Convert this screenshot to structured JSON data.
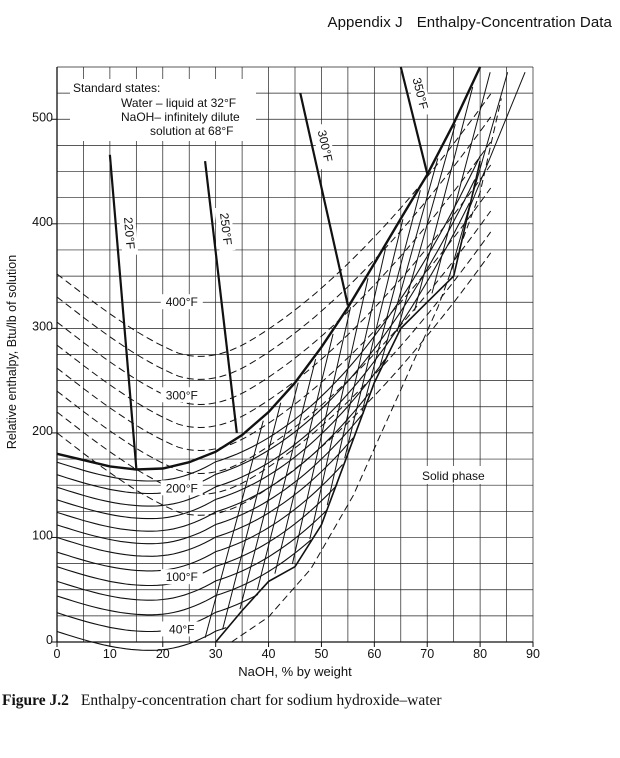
{
  "header": {
    "section": "Appendix J",
    "title": "Enthalpy-Concentration Data"
  },
  "caption": {
    "label": "Figure J.2",
    "text": "Enthalpy-concentration chart for sodium hydroxide–water"
  },
  "notes": {
    "box_title": "Standard states:",
    "water_line": "Water – liquid at 32°F",
    "naoh_line1": "NaOH– infinitely dilute",
    "naoh_line2": "solution at 68°F",
    "solid_phase": "Solid phase"
  },
  "chart_data": {
    "type": "line",
    "title": "",
    "xlabel": "NaOH, % by weight",
    "ylabel": "Relative enthalpy, Btu/lb of solution",
    "xlim": [
      0,
      90
    ],
    "ylim": [
      0,
      550
    ],
    "grid": true,
    "x_ticks": [
      "0",
      "10",
      "20",
      "30",
      "40",
      "50",
      "60",
      "70",
      "80",
      "90"
    ],
    "y_ticks": [
      "0",
      "100",
      "200",
      "300",
      "400",
      "500"
    ],
    "isotherm_labels": [
      "40°F",
      "100°F",
      "200°F",
      "300°F",
      "400°F"
    ],
    "saturation_curve": [
      [
        0,
        180
      ],
      [
        5,
        174
      ],
      [
        10,
        168
      ],
      [
        15,
        165
      ],
      [
        20,
        166
      ],
      [
        25,
        172
      ],
      [
        30,
        182
      ],
      [
        35,
        198
      ],
      [
        40,
        220
      ],
      [
        45,
        248
      ],
      [
        50,
        282
      ],
      [
        55,
        320
      ],
      [
        60,
        362
      ],
      [
        65,
        405
      ],
      [
        70,
        447
      ],
      [
        75,
        496
      ],
      [
        80,
        550
      ]
    ],
    "solid_boundary": [
      [
        30,
        0
      ],
      [
        35,
        30
      ],
      [
        40,
        58
      ],
      [
        45,
        72
      ],
      [
        50,
        112
      ],
      [
        55,
        180
      ],
      [
        60,
        248
      ],
      [
        65,
        300
      ],
      [
        70,
        325
      ],
      [
        75,
        350
      ],
      [
        80,
        460
      ]
    ],
    "boiling_lines": [
      {
        "label": "220°F",
        "points": [
          [
            10,
            466
          ],
          [
            15,
            166
          ]
        ]
      },
      {
        "label": "250°F",
        "points": [
          [
            28,
            460
          ],
          [
            34,
            200
          ]
        ]
      },
      {
        "label": "300°F",
        "points": [
          [
            46,
            525
          ],
          [
            55,
            322
          ]
        ]
      },
      {
        "label": "350°F",
        "points": [
          [
            65,
            550
          ],
          [
            70,
            448
          ]
        ]
      }
    ]
  }
}
